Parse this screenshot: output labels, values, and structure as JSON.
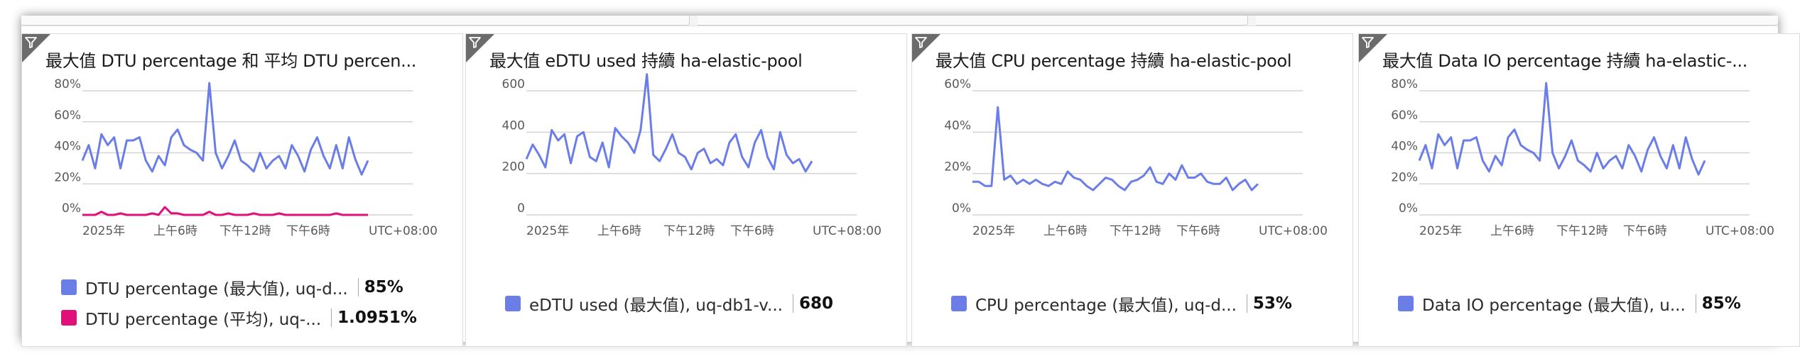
{
  "colors": {
    "blue": "#6b7ee8",
    "pink": "#e0107a",
    "grid": "#d4d4d4",
    "corner": "#6b6b6b"
  },
  "icons": {
    "filter": "filter-icon"
  },
  "x_ticks": [
    "2025年",
    "上午6時",
    "下午12時",
    "下午6時",
    "UTC+08:00"
  ],
  "tiles": [
    {
      "title": "最大值 DTU percentage 和 平均 DTU percen...",
      "y_ticks": [
        "80%",
        "60%",
        "40%",
        "20%",
        "0%"
      ],
      "y_max": 80,
      "legend": [
        {
          "name": "DTU percentage (最大值), uq-d...",
          "value": "85%",
          "color": "blue"
        },
        {
          "name": "DTU percentage (平均), uq-...",
          "value": "1.0951%",
          "color": "pink"
        }
      ],
      "series": [
        {
          "color": "blue",
          "values": [
            35,
            45,
            30,
            52,
            45,
            50,
            30,
            48,
            48,
            50,
            35,
            28,
            38,
            32,
            50,
            55,
            45,
            42,
            40,
            35,
            85,
            40,
            30,
            38,
            48,
            35,
            32,
            28,
            40,
            30,
            35,
            38,
            30,
            45,
            38,
            28,
            42,
            50,
            38,
            30,
            45,
            30,
            50,
            36,
            26,
            35
          ]
        },
        {
          "color": "pink",
          "values": [
            0,
            0,
            0,
            2,
            0,
            0,
            1,
            0,
            0,
            0,
            0,
            1,
            0,
            5,
            1,
            1,
            0,
            0,
            0,
            0,
            2,
            0,
            0,
            1,
            0,
            0,
            0,
            1,
            0,
            0,
            0,
            1,
            0,
            0,
            0,
            0,
            0,
            0,
            0,
            0,
            1,
            0,
            0,
            0,
            0,
            0
          ]
        }
      ]
    },
    {
      "title": "最大值 eDTU used 持續 ha-elastic-pool",
      "y_ticks": [
        "600",
        "400",
        "200",
        "0"
      ],
      "y_max": 600,
      "legend": [
        {
          "name": "eDTU used (最大值), uq-db1-v...",
          "value": "680",
          "color": "blue"
        }
      ],
      "series": [
        {
          "color": "blue",
          "values": [
            270,
            340,
            290,
            230,
            410,
            360,
            390,
            250,
            380,
            400,
            280,
            260,
            350,
            230,
            420,
            380,
            350,
            300,
            410,
            680,
            290,
            260,
            320,
            390,
            300,
            280,
            220,
            300,
            320,
            250,
            270,
            240,
            350,
            390,
            280,
            230,
            350,
            410,
            280,
            220,
            400,
            290,
            250,
            270,
            210,
            260
          ]
        }
      ]
    },
    {
      "title": "最大值 CPU percentage 持續 ha-elastic-pool",
      "y_ticks": [
        "60%",
        "40%",
        "20%",
        "0%"
      ],
      "y_max": 60,
      "legend": [
        {
          "name": "CPU percentage (最大值), uq-d...",
          "value": "53%",
          "color": "blue"
        }
      ],
      "series": [
        {
          "color": "blue",
          "values": [
            16,
            16,
            14,
            14,
            52,
            17,
            19,
            15,
            17,
            15,
            17,
            15,
            14,
            16,
            15,
            21,
            18,
            17,
            14,
            12,
            15,
            18,
            17,
            14,
            12,
            16,
            17,
            19,
            23,
            16,
            15,
            20,
            17,
            24,
            18,
            18,
            20,
            16,
            15,
            15,
            18,
            12,
            15,
            17,
            12,
            15
          ]
        }
      ]
    },
    {
      "title": "最大值 Data IO percentage 持續 ha-elastic-...",
      "y_ticks": [
        "80%",
        "60%",
        "40%",
        "20%",
        "0%"
      ],
      "y_max": 80,
      "legend": [
        {
          "name": "Data IO percentage (最大值), u...",
          "value": "85%",
          "color": "blue"
        }
      ],
      "series": [
        {
          "color": "blue",
          "values": [
            35,
            45,
            30,
            52,
            45,
            50,
            30,
            48,
            48,
            50,
            35,
            28,
            38,
            32,
            50,
            55,
            45,
            42,
            40,
            35,
            85,
            40,
            30,
            38,
            48,
            35,
            32,
            28,
            40,
            30,
            35,
            38,
            30,
            45,
            38,
            28,
            42,
            50,
            38,
            30,
            45,
            30,
            50,
            36,
            26,
            35
          ]
        }
      ]
    }
  ]
}
